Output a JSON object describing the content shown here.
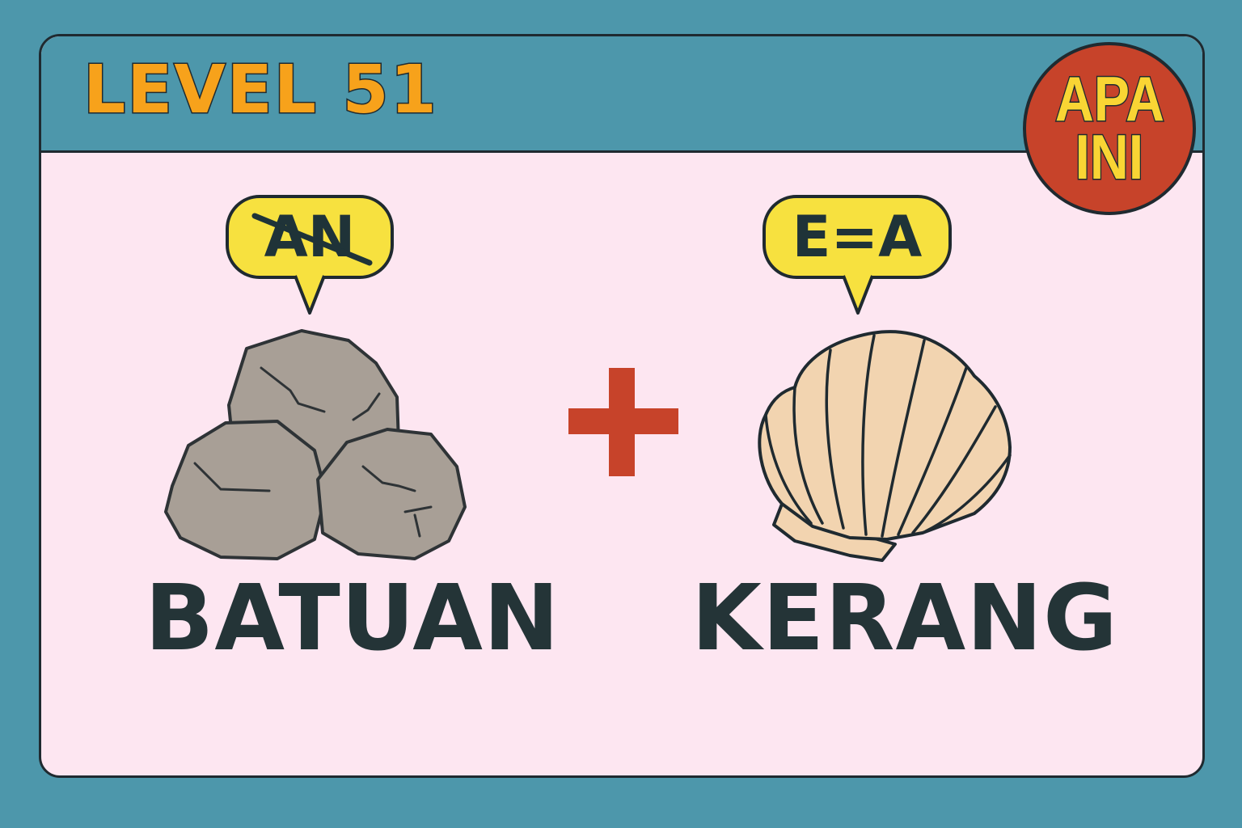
{
  "header": {
    "level_label": "LEVEL 51"
  },
  "badge": {
    "line1": "APA",
    "line2": "INI"
  },
  "clues": [
    {
      "hint": "AN",
      "hint_struck": true,
      "picture": "rocks-icon",
      "word": "BATUAN"
    },
    {
      "hint": "E=A",
      "hint_struck": false,
      "picture": "seashell-icon",
      "word": "KERANG"
    }
  ],
  "operator": "plus-icon",
  "colors": {
    "background": "#4d97ab",
    "card": "#fde6f1",
    "level_text": "#f7a21b",
    "badge": "#c7432a",
    "badge_text": "#f9d534",
    "bubble": "#f7e13f",
    "plus": "#c7432a",
    "word": "#243437",
    "rock": "#a89f96",
    "shell": "#f2d4b0"
  }
}
